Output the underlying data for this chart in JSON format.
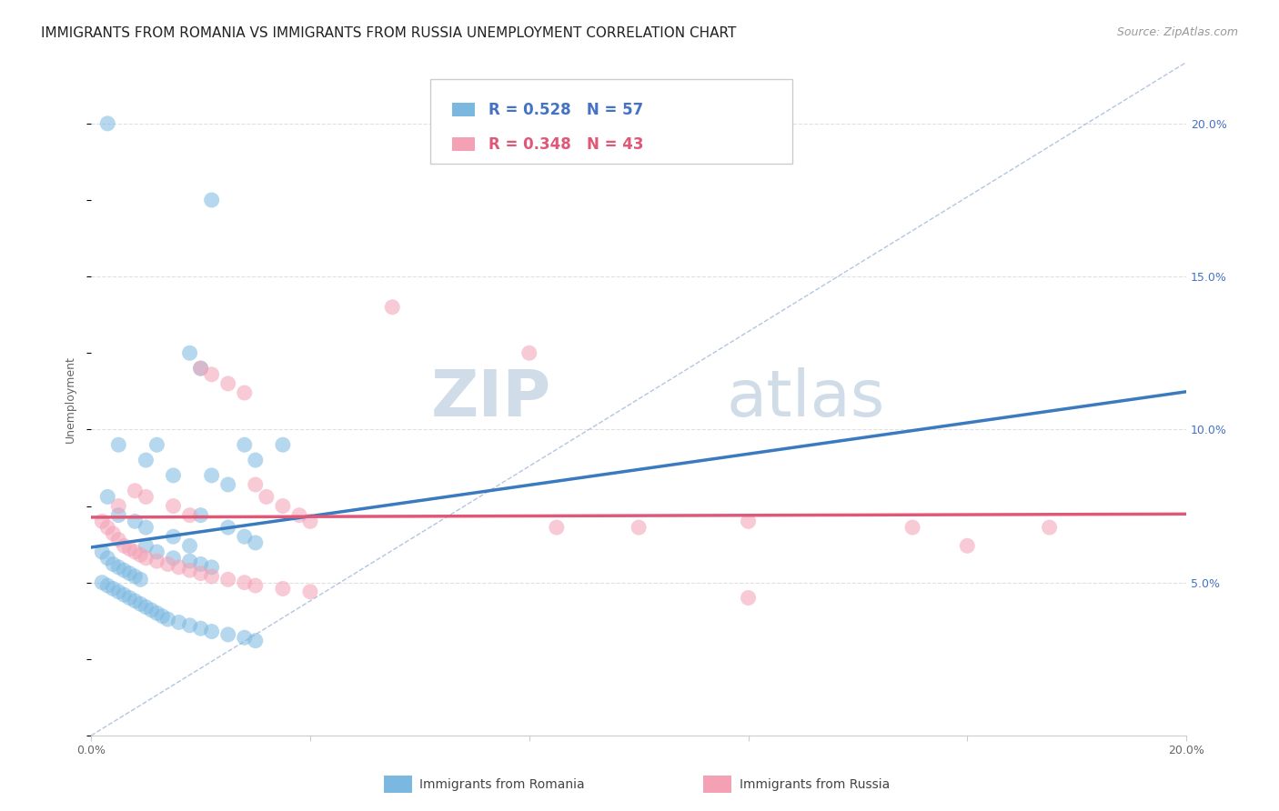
{
  "title": "IMMIGRANTS FROM ROMANIA VS IMMIGRANTS FROM RUSSIA UNEMPLOYMENT CORRELATION CHART",
  "source": "Source: ZipAtlas.com",
  "ylabel": "Unemployment",
  "x_min": 0.0,
  "x_max": 0.2,
  "y_min": 0.0,
  "y_max": 0.22,
  "x_ticks": [
    0.0,
    0.04,
    0.08,
    0.12,
    0.16,
    0.2
  ],
  "x_tick_labels": [
    "0.0%",
    "",
    "",
    "",
    "",
    "20.0%"
  ],
  "y_ticks": [
    0.05,
    0.1,
    0.15,
    0.2
  ],
  "y_tick_labels": [
    "5.0%",
    "10.0%",
    "15.0%",
    "20.0%"
  ],
  "romania_color": "#7ab8e0",
  "russia_color": "#f4a0b5",
  "romania_line_color": "#3a7abf",
  "russia_line_color": "#e05878",
  "diagonal_color": "#a0b8d8",
  "romania_R": "0.528",
  "romania_N": "57",
  "russia_R": "0.348",
  "russia_N": "43",
  "legend_label_romania": "Immigrants from Romania",
  "legend_label_russia": "Immigrants from Russia",
  "romania_scatter": [
    [
      0.003,
      0.2
    ],
    [
      0.022,
      0.175
    ],
    [
      0.005,
      0.095
    ],
    [
      0.01,
      0.09
    ],
    [
      0.018,
      0.125
    ],
    [
      0.02,
      0.12
    ],
    [
      0.012,
      0.095
    ],
    [
      0.015,
      0.085
    ],
    [
      0.028,
      0.095
    ],
    [
      0.03,
      0.09
    ],
    [
      0.022,
      0.085
    ],
    [
      0.025,
      0.082
    ],
    [
      0.003,
      0.078
    ],
    [
      0.005,
      0.072
    ],
    [
      0.008,
      0.07
    ],
    [
      0.01,
      0.068
    ],
    [
      0.015,
      0.065
    ],
    [
      0.018,
      0.062
    ],
    [
      0.02,
      0.072
    ],
    [
      0.025,
      0.068
    ],
    [
      0.028,
      0.065
    ],
    [
      0.03,
      0.063
    ],
    [
      0.01,
      0.062
    ],
    [
      0.012,
      0.06
    ],
    [
      0.015,
      0.058
    ],
    [
      0.018,
      0.057
    ],
    [
      0.02,
      0.056
    ],
    [
      0.022,
      0.055
    ],
    [
      0.002,
      0.06
    ],
    [
      0.003,
      0.058
    ],
    [
      0.004,
      0.056
    ],
    [
      0.005,
      0.055
    ],
    [
      0.006,
      0.054
    ],
    [
      0.007,
      0.053
    ],
    [
      0.008,
      0.052
    ],
    [
      0.009,
      0.051
    ],
    [
      0.002,
      0.05
    ],
    [
      0.003,
      0.049
    ],
    [
      0.004,
      0.048
    ],
    [
      0.005,
      0.047
    ],
    [
      0.006,
      0.046
    ],
    [
      0.007,
      0.045
    ],
    [
      0.008,
      0.044
    ],
    [
      0.009,
      0.043
    ],
    [
      0.01,
      0.042
    ],
    [
      0.011,
      0.041
    ],
    [
      0.012,
      0.04
    ],
    [
      0.013,
      0.039
    ],
    [
      0.014,
      0.038
    ],
    [
      0.016,
      0.037
    ],
    [
      0.018,
      0.036
    ],
    [
      0.02,
      0.035
    ],
    [
      0.022,
      0.034
    ],
    [
      0.025,
      0.033
    ],
    [
      0.028,
      0.032
    ],
    [
      0.03,
      0.031
    ],
    [
      0.035,
      0.095
    ]
  ],
  "russia_scatter": [
    [
      0.005,
      0.075
    ],
    [
      0.008,
      0.08
    ],
    [
      0.01,
      0.078
    ],
    [
      0.015,
      0.075
    ],
    [
      0.018,
      0.072
    ],
    [
      0.02,
      0.12
    ],
    [
      0.022,
      0.118
    ],
    [
      0.025,
      0.115
    ],
    [
      0.028,
      0.112
    ],
    [
      0.03,
      0.082
    ],
    [
      0.032,
      0.078
    ],
    [
      0.035,
      0.075
    ],
    [
      0.038,
      0.072
    ],
    [
      0.04,
      0.07
    ],
    [
      0.055,
      0.14
    ],
    [
      0.08,
      0.125
    ],
    [
      0.085,
      0.068
    ],
    [
      0.1,
      0.068
    ],
    [
      0.12,
      0.07
    ],
    [
      0.15,
      0.068
    ],
    [
      0.16,
      0.062
    ],
    [
      0.175,
      0.068
    ],
    [
      0.002,
      0.07
    ],
    [
      0.003,
      0.068
    ],
    [
      0.004,
      0.066
    ],
    [
      0.005,
      0.064
    ],
    [
      0.006,
      0.062
    ],
    [
      0.007,
      0.061
    ],
    [
      0.008,
      0.06
    ],
    [
      0.009,
      0.059
    ],
    [
      0.01,
      0.058
    ],
    [
      0.012,
      0.057
    ],
    [
      0.014,
      0.056
    ],
    [
      0.016,
      0.055
    ],
    [
      0.018,
      0.054
    ],
    [
      0.02,
      0.053
    ],
    [
      0.022,
      0.052
    ],
    [
      0.025,
      0.051
    ],
    [
      0.028,
      0.05
    ],
    [
      0.03,
      0.049
    ],
    [
      0.035,
      0.048
    ],
    [
      0.04,
      0.047
    ],
    [
      0.12,
      0.045
    ]
  ],
  "background_color": "#ffffff",
  "grid_color": "#e0e0e0",
  "title_fontsize": 11,
  "axis_label_fontsize": 9,
  "tick_fontsize": 9,
  "source_fontsize": 9,
  "watermark_zip": "ZIP",
  "watermark_atlas": "atlas",
  "watermark_fontsize": 52,
  "watermark_color_zip": "#d0dce8",
  "watermark_color_atlas": "#d0dce8"
}
